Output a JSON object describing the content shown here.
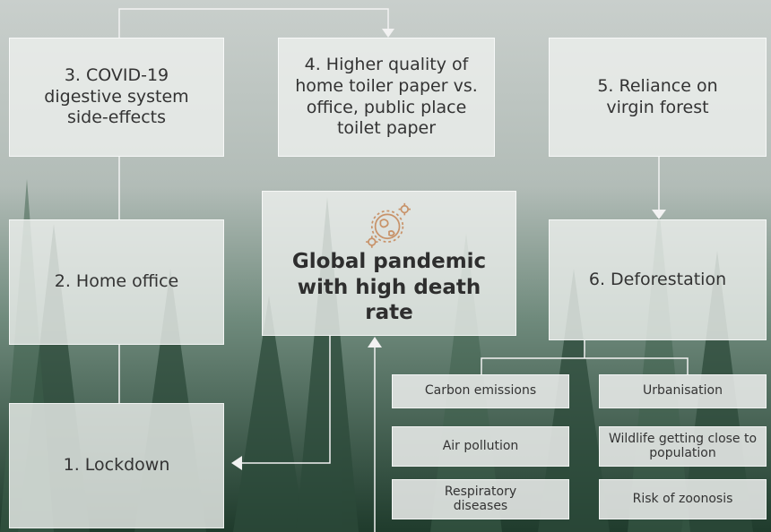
{
  "center": {
    "label": "Global pandemic with high death rate"
  },
  "nodes": [
    {
      "label": "1. Lockdown"
    },
    {
      "label": "2. Home office"
    },
    {
      "label": "3. COVID-19 digestive system side-effects"
    },
    {
      "label": "4. Higher quality of home toiler paper vs. office, public place toilet paper"
    },
    {
      "label": "5. Reliance on virgin forest"
    },
    {
      "label": "6. Deforestation"
    }
  ],
  "effects": {
    "left": [
      "Carbon emissions",
      "Air pollution",
      "Respiratory diseases"
    ],
    "right": [
      "Urbanisation",
      "Wildlife getting close to population",
      "Risk of zoonosis"
    ]
  }
}
